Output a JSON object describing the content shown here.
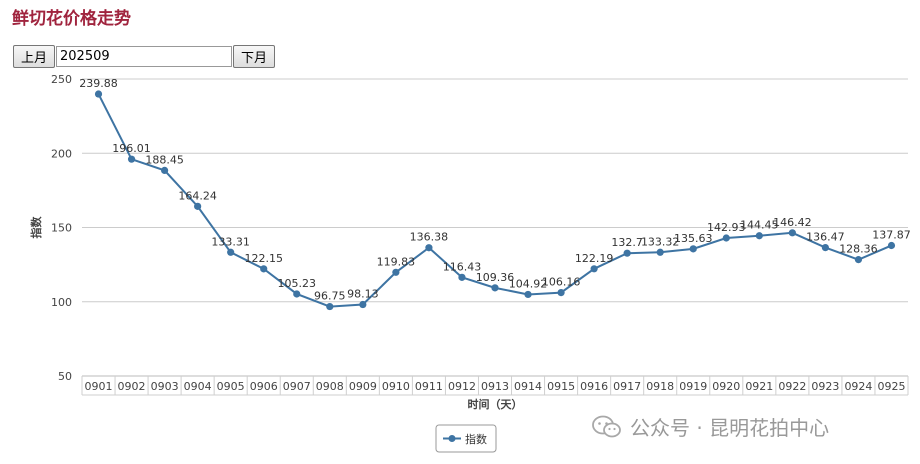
{
  "title": "鲜切花价格走势",
  "controls": {
    "prev_label": "上月",
    "next_label": "下月",
    "month_value": "202509"
  },
  "watermark": {
    "text": "公众号 · 昆明花拍中心",
    "icon": "wechat-icon"
  },
  "colors": {
    "title": "#a0243e",
    "series": "#3e74a3",
    "grid": "#cccccc",
    "label": "#444444"
  },
  "chart_data": {
    "type": "line",
    "x": [
      "0901",
      "0902",
      "0903",
      "0904",
      "0905",
      "0906",
      "0907",
      "0908",
      "0909",
      "0910",
      "0911",
      "0912",
      "0913",
      "0914",
      "0915",
      "0916",
      "0917",
      "0918",
      "0919",
      "0920",
      "0921",
      "0922",
      "0923",
      "0924",
      "0925"
    ],
    "series": [
      {
        "name": "指数",
        "values": [
          239.88,
          196.01,
          188.45,
          164.24,
          133.31,
          122.15,
          105.23,
          96.75,
          98.13,
          119.83,
          136.38,
          116.43,
          109.36,
          104.92,
          106.16,
          122.19,
          132.7,
          133.32,
          135.63,
          142.93,
          144.45,
          146.42,
          136.47,
          128.36,
          137.87
        ],
        "labels": [
          "239.88",
          "196.01",
          "188.45",
          "164.24",
          "133.31",
          "122.15",
          "105.23",
          "96.75",
          "98.13",
          "119.83",
          "136.38",
          "116.43",
          "109.36",
          "104.92",
          "106.16",
          "122.19",
          "132.7",
          "133.32",
          "135.63",
          "142.93",
          "144.45",
          "146.42",
          "136.47",
          "128.36",
          "137.87"
        ]
      }
    ],
    "xlabel": "时间（天）",
    "ylabel": "指数",
    "ylim": [
      50,
      250
    ],
    "yticks": [
      50,
      100,
      150,
      200,
      250
    ],
    "grid": true,
    "legend_position": "bottom-center"
  }
}
